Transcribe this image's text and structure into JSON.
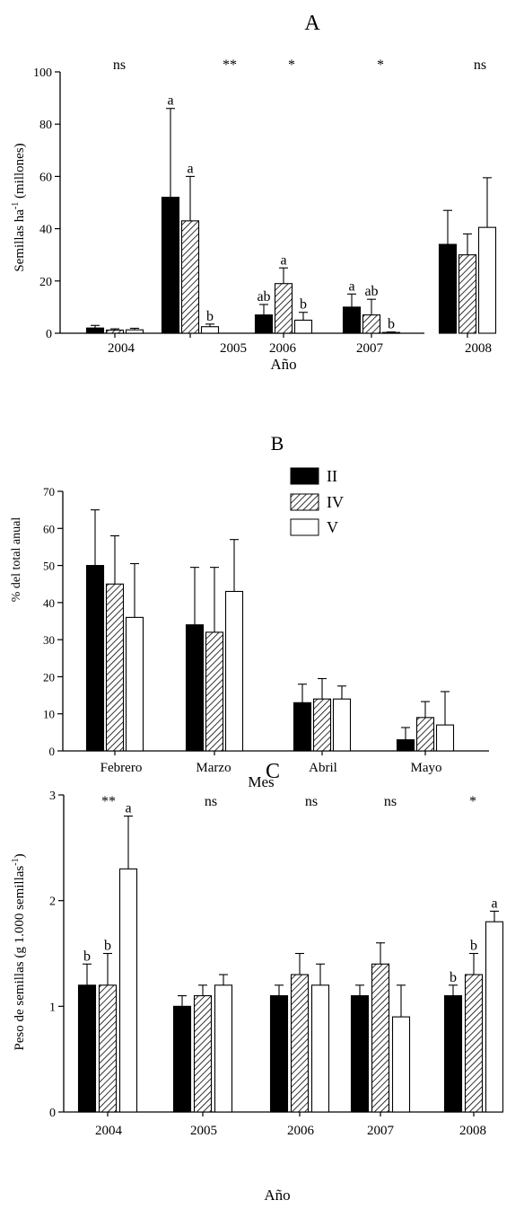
{
  "colors": {
    "bar_II": "#000000",
    "bar_IV": "hatch",
    "bar_V": "#ffffff",
    "axis": "#000000"
  },
  "legend": {
    "placement": "top-right of panel B",
    "entries": [
      "II",
      "IV",
      "V"
    ]
  },
  "chart_data": [
    {
      "panel": "A",
      "type": "bar",
      "title": "A",
      "xlabel": "Año",
      "ylabel_main": "Semillas ha",
      "ylabel_sup": "-1",
      "ylabel_tail": " (millones)",
      "ylim": [
        0,
        100
      ],
      "yticks": [
        "0",
        "20",
        "40",
        "60",
        "80",
        "100"
      ],
      "categories": [
        "2004",
        "2005",
        "2006",
        "2007",
        "2008"
      ],
      "significance": [
        "ns",
        "**",
        "*",
        "*",
        "ns"
      ],
      "series": [
        {
          "name": "II",
          "values": [
            2,
            52,
            7,
            10,
            34
          ],
          "errors": [
            1,
            34,
            4,
            5,
            13
          ],
          "letters": [
            "",
            "a",
            "ab",
            "a",
            ""
          ]
        },
        {
          "name": "IV",
          "values": [
            1.2,
            43,
            19,
            7,
            30
          ],
          "errors": [
            0.5,
            17,
            6,
            6,
            8
          ],
          "letters": [
            "",
            "a",
            "a",
            "ab",
            ""
          ]
        },
        {
          "name": "V",
          "values": [
            1.3,
            2.5,
            5,
            0.3,
            40.5
          ],
          "errors": [
            0.6,
            1,
            3,
            0.2,
            19
          ],
          "letters": [
            "",
            "b",
            "b",
            "b",
            ""
          ]
        }
      ]
    },
    {
      "panel": "B",
      "type": "bar",
      "title": "B",
      "xlabel": "Mes",
      "ylabel_main": "% del total anual",
      "ylim": [
        0,
        70
      ],
      "yticks": [
        "0",
        "10",
        "20",
        "30",
        "40",
        "50",
        "60",
        "70"
      ],
      "categories": [
        "Febrero",
        "Marzo",
        "Abril",
        "Mayo"
      ],
      "series": [
        {
          "name": "II",
          "values": [
            50,
            34,
            13,
            3
          ],
          "errors": [
            15,
            15.5,
            5,
            3.3
          ]
        },
        {
          "name": "IV",
          "values": [
            45,
            32,
            14,
            9
          ],
          "errors": [
            13,
            17.5,
            5.5,
            4.3
          ]
        },
        {
          "name": "V",
          "values": [
            36,
            43,
            14,
            7
          ],
          "errors": [
            14.5,
            14,
            3.5,
            9
          ]
        }
      ]
    },
    {
      "panel": "C",
      "type": "bar",
      "title": "C",
      "xlabel": "Año",
      "ylabel_main": "Peso de semillas (g 1.000 semillas",
      "ylabel_sup": "-1",
      "ylabel_tail": ")",
      "ylim": [
        0,
        3
      ],
      "yticks": [
        "0",
        "1",
        "2",
        "3"
      ],
      "categories": [
        "2004",
        "2005",
        "2006",
        "2007",
        "2008"
      ],
      "significance": [
        "**",
        "ns",
        "ns",
        "ns",
        "*"
      ],
      "series": [
        {
          "name": "II",
          "values": [
            1.2,
            1.0,
            1.1,
            1.1,
            1.1
          ],
          "errors": [
            0.2,
            0.1,
            0.1,
            0.1,
            0.1
          ],
          "letters": [
            "b",
            "",
            "",
            "",
            "b"
          ]
        },
        {
          "name": "IV",
          "values": [
            1.2,
            1.1,
            1.3,
            1.4,
            1.3
          ],
          "errors": [
            0.3,
            0.1,
            0.2,
            0.2,
            0.2
          ],
          "letters": [
            "b",
            "",
            "",
            "",
            "b"
          ]
        },
        {
          "name": "V",
          "values": [
            2.3,
            1.2,
            1.2,
            0.9,
            1.8
          ],
          "errors": [
            0.5,
            0.1,
            0.2,
            0.3,
            0.1
          ],
          "letters": [
            "a",
            "",
            "",
            "",
            "a"
          ]
        }
      ]
    }
  ]
}
